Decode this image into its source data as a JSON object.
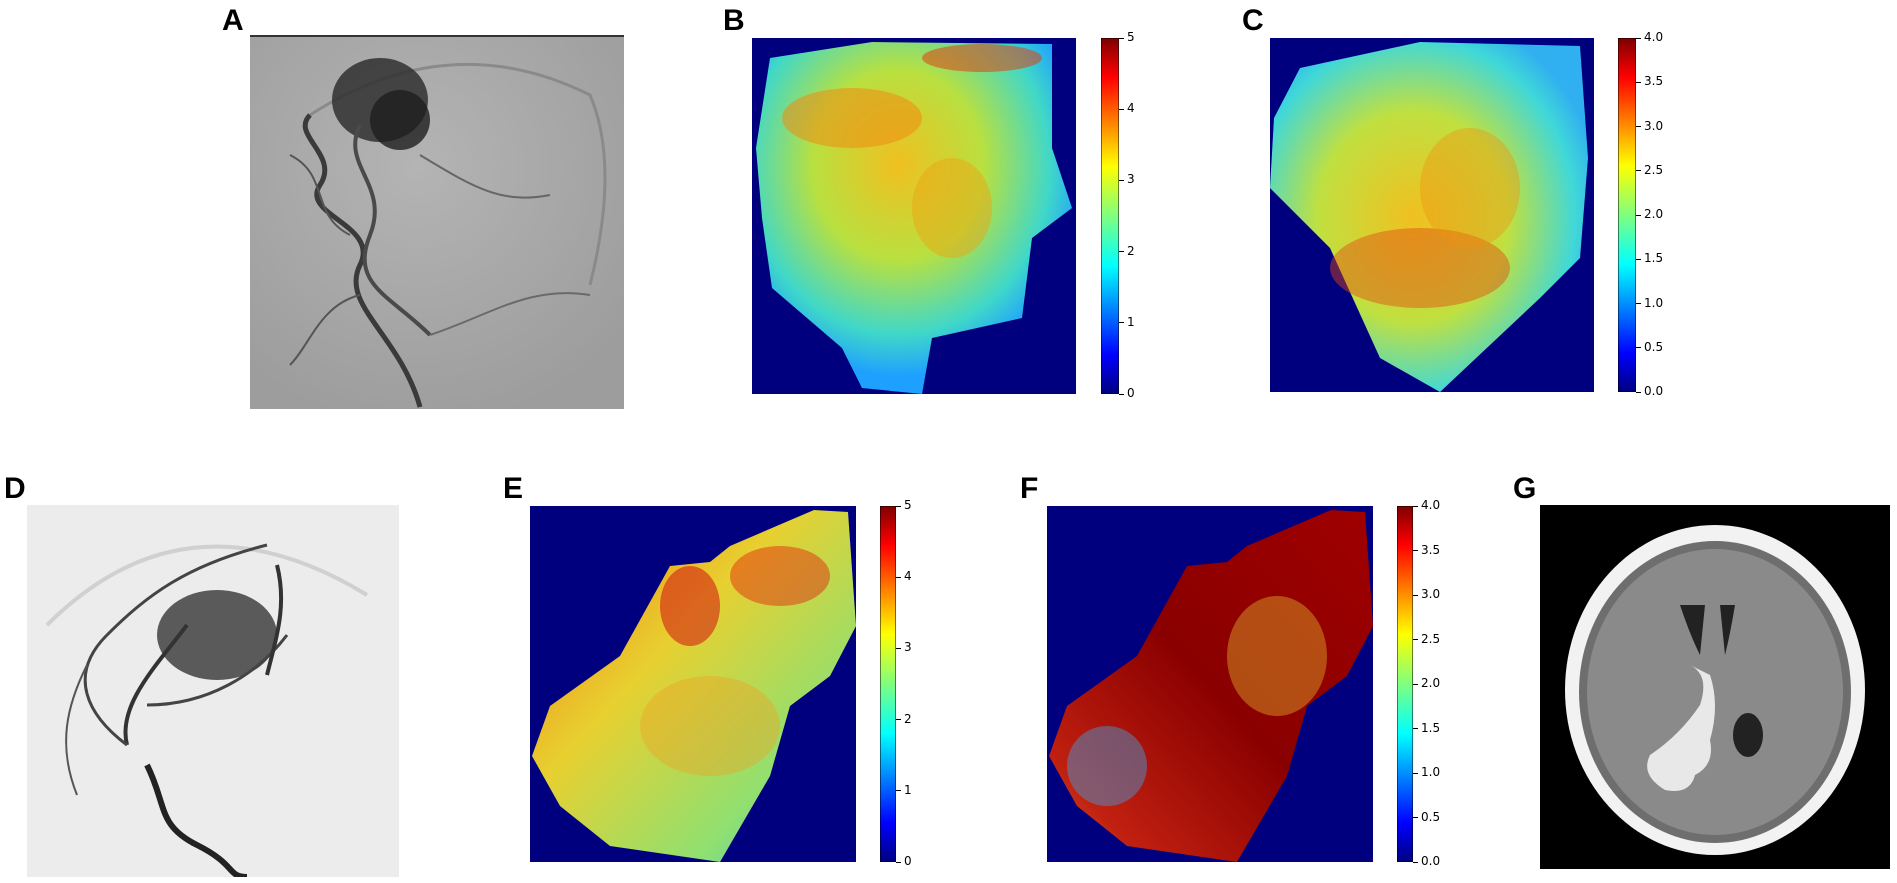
{
  "panels": [
    {
      "letter": "A",
      "kind": "angiogram"
    },
    {
      "letter": "B",
      "kind": "heatmap",
      "colorbar_ticks": [
        "0",
        "1",
        "2",
        "3",
        "4",
        "5"
      ]
    },
    {
      "letter": "C",
      "kind": "heatmap",
      "colorbar_ticks": [
        "0.0",
        "0.5",
        "1.0",
        "1.5",
        "2.0",
        "2.5",
        "3.0",
        "3.5",
        "4.0"
      ]
    },
    {
      "letter": "D",
      "kind": "angiogram"
    },
    {
      "letter": "E",
      "kind": "heatmap",
      "colorbar_ticks": [
        "0",
        "1",
        "2",
        "3",
        "4",
        "5"
      ]
    },
    {
      "letter": "F",
      "kind": "heatmap",
      "colorbar_ticks": [
        "0.0",
        "0.5",
        "1.0",
        "1.5",
        "2.0",
        "2.5",
        "3.0",
        "3.5",
        "4.0"
      ]
    },
    {
      "letter": "G",
      "kind": "ct-scan"
    }
  ],
  "colormap": "jet",
  "heatmap_background": "#00007f"
}
